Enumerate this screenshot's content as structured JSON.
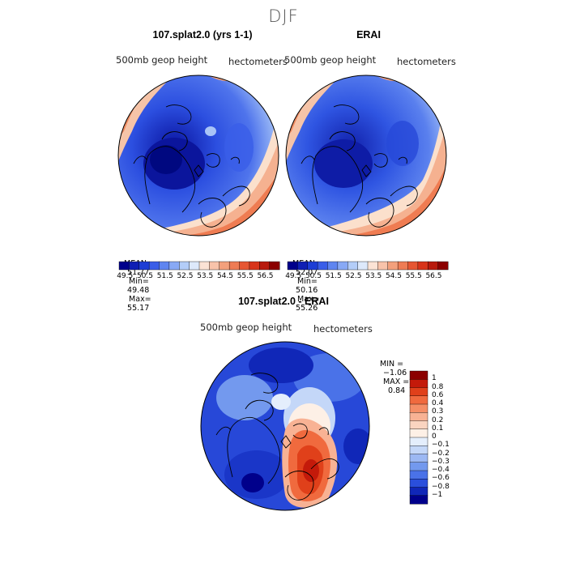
{
  "page": {
    "main_title": "DJF",
    "colors": {
      "deep_blue": "#00008b",
      "blue": "#2c4fe8",
      "light": "#f8e8da",
      "red": "#e0401a",
      "dark_red": "#8b0000"
    }
  },
  "panels": [
    {
      "title": "107.splat2.0 (yrs 1-1)",
      "variable": "500mb geop height",
      "units": "hectometers",
      "stats": {
        "mean_label": "MEAN=",
        "mean": "51.77",
        "min_label": "Min=",
        "min": "49.48",
        "max_label": "Max=",
        "max": "55.17"
      }
    },
    {
      "title": "ERAI",
      "variable": "500mb geop height",
      "units": "hectometers",
      "stats": {
        "mean_label": "MEAN=",
        "mean": "52.07",
        "min_label": "Min=",
        "min": "50.16",
        "max_label": "Max=",
        "max": "55.26"
      }
    }
  ],
  "field_colorbar": {
    "labels": [
      "49.5",
      "50.5",
      "51.5",
      "52.5",
      "53.5",
      "54.5",
      "55.5",
      "56.5"
    ],
    "colors": [
      "#00008b",
      "#0f1fb4",
      "#1d3dd5",
      "#3a5ee8",
      "#5f85f0",
      "#88a9f5",
      "#b3cdf8",
      "#dde9fb",
      "#fbe3d5",
      "#f8c3aa",
      "#f3a07c",
      "#ee7c54",
      "#e65632",
      "#d8341a",
      "#b81a0d",
      "#8b0000"
    ]
  },
  "difference_panel": {
    "title": "107.splat2.0 - ERAI",
    "variable": "500mb geop height",
    "units": "hectometers",
    "stats": {
      "min_label": "MIN =",
      "min": "−1.06",
      "max_label": "MAX =",
      "max": "0.84"
    }
  },
  "difference_colorbar": {
    "labels": [
      "1",
      "0.8",
      "0.6",
      "0.4",
      "0.3",
      "0.2",
      "0.1",
      "0",
      "−0.1",
      "−0.2",
      "−0.3",
      "−0.4",
      "−0.6",
      "−0.8",
      "−1"
    ],
    "colors": [
      "#8b0000",
      "#c41a0a",
      "#e0401a",
      "#f06a3e",
      "#f58e66",
      "#f8b294",
      "#fad4c0",
      "#fdf0e6",
      "#e4eefc",
      "#c4d7f8",
      "#9cb8f3",
      "#7399ee",
      "#4a72e8",
      "#2a4fdc",
      "#1027b8",
      "#00008b"
    ]
  }
}
